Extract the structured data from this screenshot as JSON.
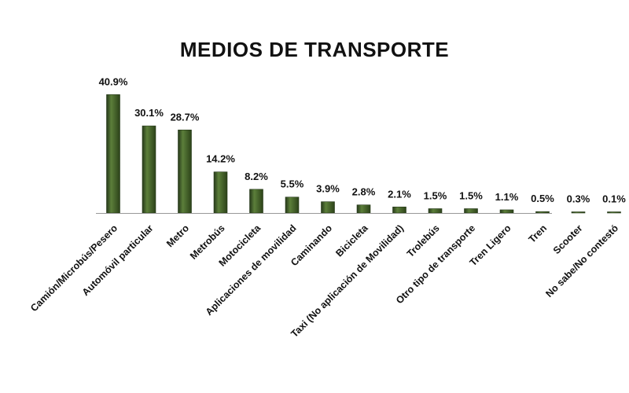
{
  "chart_data": {
    "type": "bar",
    "title": "MEDIOS DE TRANSPORTE",
    "xlabel": "",
    "ylabel": "",
    "categories": [
      "Camión/Microbús/Pesero",
      "Automóvil particular",
      "Metro",
      "Metrobús",
      "Motocicleta",
      "Aplicaciones de movilidad",
      "Caminando",
      "Bicicleta",
      "Taxi (No aplicación de Movilidad)",
      "Trolebús",
      "Otro tipo de transporte",
      "Tren Ligero",
      "Tren",
      "Scooter",
      "No sabe/No contestó"
    ],
    "values": [
      40.9,
      30.1,
      28.7,
      14.2,
      8.2,
      5.5,
      3.9,
      2.8,
      2.1,
      1.5,
      1.5,
      1.1,
      0.5,
      0.3,
      0.1
    ],
    "value_labels": [
      "40.9%",
      "30.1%",
      "28.7%",
      "14.2%",
      "8.2%",
      "5.5%",
      "3.9%",
      "2.8%",
      "2.1%",
      "1.5%",
      "1.5%",
      "1.1%",
      "0.5%",
      "0.3%",
      "0.1%"
    ],
    "ylim": [
      0,
      41
    ],
    "grid": false,
    "legend": "none",
    "colors": {
      "bar": "#3e5a22",
      "bar_highlight": "#5c7f3a",
      "bar_shadow": "#26391a",
      "axis": "#999999",
      "text": "#111111"
    }
  }
}
